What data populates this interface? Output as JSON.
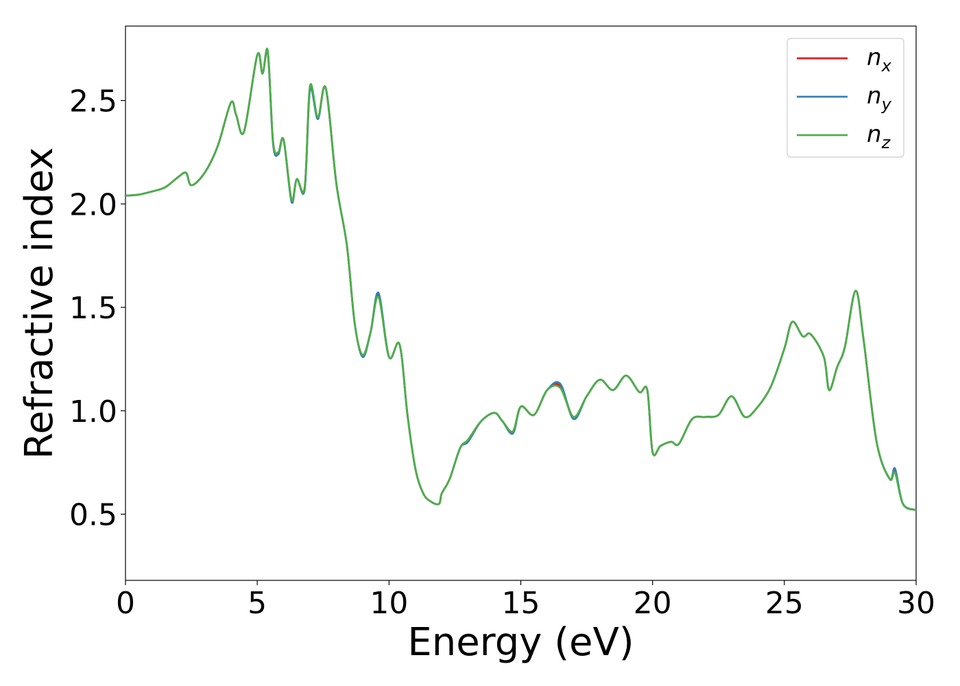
{
  "chart_data": {
    "type": "line",
    "title": "",
    "xlabel": "Energy (eV)",
    "ylabel": "Refractive index",
    "xlim": [
      0,
      30
    ],
    "ylim": [
      0.18,
      2.86
    ],
    "xticks": [
      0,
      5,
      10,
      15,
      20,
      25,
      30
    ],
    "xtick_labels": [
      "0",
      "5",
      "10",
      "15",
      "20",
      "25",
      "30"
    ],
    "yticks": [
      0.5,
      1.0,
      1.5,
      2.0,
      2.5
    ],
    "ytick_labels": [
      "0.5",
      "1.0",
      "1.5",
      "2.0",
      "2.5"
    ],
    "grid": false,
    "legend": {
      "placement": "top-right",
      "entries": [
        {
          "base": "n",
          "sub": "x",
          "color": "#e41a1c"
        },
        {
          "base": "n",
          "sub": "y",
          "color": "#377eb8"
        },
        {
          "base": "n",
          "sub": "z",
          "color": "#4daf4a"
        }
      ]
    },
    "x": [
      0,
      0.5,
      1,
      1.5,
      2,
      2.3,
      2.5,
      3,
      3.5,
      4,
      4.2,
      4.5,
      5,
      5.2,
      5.4,
      5.6,
      5.8,
      6,
      6.3,
      6.5,
      6.8,
      7,
      7.3,
      7.6,
      8,
      8.4,
      8.7,
      9,
      9.3,
      9.6,
      10,
      10.4,
      10.7,
      11,
      11.3,
      11.6,
      11.9,
      12,
      12.3,
      12.7,
      13,
      13.5,
      14,
      14.3,
      14.7,
      15,
      15.5,
      16,
      16.5,
      17,
      17.5,
      18,
      18.5,
      19,
      19.5,
      19.8,
      20,
      20.3,
      20.7,
      21,
      21.5,
      22,
      22.5,
      23,
      23.5,
      24,
      24.5,
      25,
      25.3,
      25.7,
      26,
      26.5,
      26.7,
      27,
      27.3,
      27.7,
      28,
      28.5,
      29,
      29.2,
      29.5,
      30
    ],
    "series": [
      {
        "name": "n_x",
        "color": "#e41a1c",
        "values": [
          2.04,
          2.045,
          2.06,
          2.08,
          2.13,
          2.15,
          2.09,
          2.15,
          2.28,
          2.49,
          2.43,
          2.35,
          2.72,
          2.63,
          2.73,
          2.3,
          2.25,
          2.31,
          2.02,
          2.12,
          2.08,
          2.56,
          2.42,
          2.56,
          2.1,
          1.8,
          1.42,
          1.27,
          1.38,
          1.56,
          1.26,
          1.32,
          0.98,
          0.72,
          0.6,
          0.56,
          0.55,
          0.6,
          0.67,
          0.82,
          0.86,
          0.95,
          0.99,
          0.95,
          0.9,
          1.02,
          0.98,
          1.1,
          1.12,
          0.97,
          1.07,
          1.15,
          1.1,
          1.17,
          1.09,
          1.1,
          0.8,
          0.83,
          0.85,
          0.84,
          0.96,
          0.97,
          0.98,
          1.07,
          0.97,
          1.02,
          1.12,
          1.3,
          1.43,
          1.36,
          1.37,
          1.26,
          1.1,
          1.21,
          1.31,
          1.58,
          1.35,
          0.85,
          0.67,
          0.71,
          0.55,
          0.52
        ]
      },
      {
        "name": "n_y",
        "color": "#377eb8",
        "values": [
          2.04,
          2.045,
          2.06,
          2.08,
          2.13,
          2.15,
          2.09,
          2.15,
          2.28,
          2.49,
          2.43,
          2.35,
          2.72,
          2.63,
          2.73,
          2.29,
          2.24,
          2.31,
          2.01,
          2.12,
          2.07,
          2.55,
          2.41,
          2.56,
          2.1,
          1.8,
          1.42,
          1.26,
          1.38,
          1.57,
          1.26,
          1.32,
          0.98,
          0.72,
          0.6,
          0.56,
          0.55,
          0.6,
          0.67,
          0.82,
          0.85,
          0.95,
          0.99,
          0.95,
          0.89,
          1.02,
          0.98,
          1.1,
          1.13,
          0.96,
          1.07,
          1.15,
          1.1,
          1.17,
          1.09,
          1.1,
          0.8,
          0.83,
          0.85,
          0.84,
          0.96,
          0.97,
          0.98,
          1.07,
          0.97,
          1.02,
          1.12,
          1.3,
          1.43,
          1.36,
          1.37,
          1.26,
          1.1,
          1.21,
          1.31,
          1.58,
          1.35,
          0.85,
          0.67,
          0.72,
          0.55,
          0.52
        ]
      },
      {
        "name": "n_z",
        "color": "#4daf4a",
        "values": [
          2.04,
          2.045,
          2.06,
          2.08,
          2.13,
          2.15,
          2.09,
          2.15,
          2.28,
          2.49,
          2.43,
          2.35,
          2.72,
          2.63,
          2.74,
          2.3,
          2.25,
          2.31,
          2.02,
          2.12,
          2.08,
          2.57,
          2.42,
          2.56,
          2.1,
          1.8,
          1.42,
          1.27,
          1.38,
          1.55,
          1.26,
          1.32,
          0.98,
          0.72,
          0.6,
          0.56,
          0.55,
          0.6,
          0.67,
          0.82,
          0.86,
          0.95,
          0.99,
          0.95,
          0.9,
          1.02,
          0.98,
          1.1,
          1.11,
          0.97,
          1.07,
          1.15,
          1.1,
          1.17,
          1.09,
          1.1,
          0.8,
          0.83,
          0.85,
          0.84,
          0.96,
          0.97,
          0.98,
          1.07,
          0.97,
          1.02,
          1.12,
          1.3,
          1.43,
          1.36,
          1.37,
          1.26,
          1.1,
          1.21,
          1.31,
          1.58,
          1.35,
          0.85,
          0.67,
          0.7,
          0.55,
          0.52
        ]
      }
    ]
  }
}
